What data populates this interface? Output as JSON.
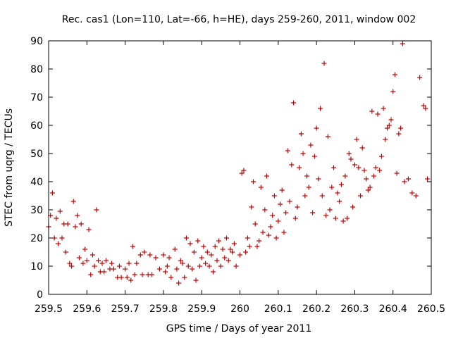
{
  "chart_data": {
    "type": "scatter",
    "title": "Rec. cas1 (Lon=110, Lat=-66, h=HE), days 259-260, 2011, window 002",
    "xlabel": "GPS time / Days of year 2011",
    "ylabel": "STEC from uqrg / TECUs",
    "xlim": [
      259.5,
      260.5
    ],
    "ylim": [
      0,
      90
    ],
    "xticks": [
      259.5,
      259.6,
      259.7,
      259.8,
      259.9,
      260.0,
      260.1,
      260.2,
      260.3,
      260.4,
      260.5
    ],
    "xtick_labels": [
      "259.5",
      "259.6",
      "259.7",
      "259.8",
      "259.9",
      "260",
      "260.1",
      "260.2",
      "260.3",
      "260.4",
      "260.5"
    ],
    "yticks": [
      0,
      10,
      20,
      30,
      40,
      50,
      60,
      70,
      80,
      90
    ],
    "ytick_labels": [
      "0",
      "10",
      "20",
      "30",
      "40",
      "50",
      "60",
      "70",
      "80",
      "90"
    ],
    "marker": "+",
    "marker_color": "#cc0000",
    "grid": false,
    "series": [
      {
        "name": "STEC",
        "points": [
          [
            259.5,
            24
          ],
          [
            259.505,
            28
          ],
          [
            259.51,
            36
          ],
          [
            259.515,
            20
          ],
          [
            259.52,
            27
          ],
          [
            259.525,
            18
          ],
          [
            259.53,
            29.5
          ],
          [
            259.535,
            20
          ],
          [
            259.54,
            25
          ],
          [
            259.545,
            15
          ],
          [
            259.55,
            25
          ],
          [
            259.555,
            11
          ],
          [
            259.56,
            10
          ],
          [
            259.565,
            33
          ],
          [
            259.57,
            24
          ],
          [
            259.575,
            28
          ],
          [
            259.58,
            13
          ],
          [
            259.585,
            25
          ],
          [
            259.59,
            11
          ],
          [
            259.595,
            16
          ],
          [
            259.6,
            12
          ],
          [
            259.605,
            23
          ],
          [
            259.61,
            7
          ],
          [
            259.615,
            14
          ],
          [
            259.62,
            10
          ],
          [
            259.625,
            30
          ],
          [
            259.63,
            12
          ],
          [
            259.635,
            8
          ],
          [
            259.64,
            11
          ],
          [
            259.645,
            8
          ],
          [
            259.65,
            12
          ],
          [
            259.66,
            9
          ],
          [
            259.665,
            11
          ],
          [
            259.67,
            9
          ],
          [
            259.68,
            6
          ],
          [
            259.685,
            10
          ],
          [
            259.69,
            6
          ],
          [
            259.7,
            9
          ],
          [
            259.705,
            6
          ],
          [
            259.71,
            11
          ],
          [
            259.715,
            5
          ],
          [
            259.72,
            17
          ],
          [
            259.725,
            7
          ],
          [
            259.73,
            11
          ],
          [
            259.74,
            14
          ],
          [
            259.745,
            7
          ],
          [
            259.75,
            15
          ],
          [
            259.76,
            7
          ],
          [
            259.765,
            14
          ],
          [
            259.77,
            7
          ],
          [
            259.78,
            13
          ],
          [
            259.79,
            9
          ],
          [
            259.8,
            14
          ],
          [
            259.805,
            8
          ],
          [
            259.81,
            10
          ],
          [
            259.815,
            13
          ],
          [
            259.82,
            6
          ],
          [
            259.83,
            16
          ],
          [
            259.835,
            9
          ],
          [
            259.84,
            4
          ],
          [
            259.845,
            12
          ],
          [
            259.85,
            11
          ],
          [
            259.855,
            6
          ],
          [
            259.86,
            20
          ],
          [
            259.865,
            10
          ],
          [
            259.87,
            18
          ],
          [
            259.875,
            9
          ],
          [
            259.88,
            15
          ],
          [
            259.885,
            5
          ],
          [
            259.89,
            19
          ],
          [
            259.895,
            10
          ],
          [
            259.9,
            13
          ],
          [
            259.905,
            17
          ],
          [
            259.91,
            11
          ],
          [
            259.915,
            15
          ],
          [
            259.92,
            10
          ],
          [
            259.925,
            14
          ],
          [
            259.93,
            8
          ],
          [
            259.935,
            17
          ],
          [
            259.94,
            12
          ],
          [
            259.945,
            19
          ],
          [
            259.95,
            10
          ],
          [
            259.955,
            16
          ],
          [
            259.96,
            13
          ],
          [
            259.965,
            20
          ],
          [
            259.97,
            12
          ],
          [
            259.975,
            16
          ],
          [
            259.98,
            15
          ],
          [
            259.985,
            18
          ],
          [
            259.99,
            10
          ],
          [
            260.0,
            14
          ],
          [
            260.005,
            43
          ],
          [
            260.01,
            44
          ],
          [
            260.015,
            15
          ],
          [
            260.02,
            20
          ],
          [
            260.025,
            17
          ],
          [
            260.03,
            31
          ],
          [
            260.035,
            40
          ],
          [
            260.04,
            25
          ],
          [
            260.045,
            17
          ],
          [
            260.05,
            19
          ],
          [
            260.055,
            38
          ],
          [
            260.06,
            22
          ],
          [
            260.065,
            30
          ],
          [
            260.07,
            42
          ],
          [
            260.075,
            21
          ],
          [
            260.08,
            24
          ],
          [
            260.085,
            28
          ],
          [
            260.09,
            35
          ],
          [
            260.095,
            20
          ],
          [
            260.1,
            26
          ],
          [
            260.105,
            32
          ],
          [
            260.11,
            37
          ],
          [
            260.115,
            22
          ],
          [
            260.12,
            29
          ],
          [
            260.125,
            51
          ],
          [
            260.13,
            33
          ],
          [
            260.135,
            46
          ],
          [
            260.14,
            68
          ],
          [
            260.145,
            27
          ],
          [
            260.15,
            31
          ],
          [
            260.155,
            45
          ],
          [
            260.16,
            57
          ],
          [
            260.165,
            50
          ],
          [
            260.17,
            35
          ],
          [
            260.175,
            42
          ],
          [
            260.18,
            38
          ],
          [
            260.185,
            53
          ],
          [
            260.19,
            29
          ],
          [
            260.195,
            49
          ],
          [
            260.2,
            59
          ],
          [
            260.205,
            41
          ],
          [
            260.21,
            66
          ],
          [
            260.215,
            35
          ],
          [
            260.22,
            82
          ],
          [
            260.225,
            28
          ],
          [
            260.23,
            56
          ],
          [
            260.235,
            30
          ],
          [
            260.24,
            38
          ],
          [
            260.245,
            45
          ],
          [
            260.25,
            27
          ],
          [
            260.255,
            36
          ],
          [
            260.26,
            33
          ],
          [
            260.265,
            39
          ],
          [
            260.27,
            26
          ],
          [
            260.275,
            42
          ],
          [
            260.28,
            27
          ],
          [
            260.285,
            50
          ],
          [
            260.29,
            48
          ],
          [
            260.295,
            31
          ],
          [
            260.3,
            46
          ],
          [
            260.305,
            55
          ],
          [
            260.31,
            45
          ],
          [
            260.315,
            35
          ],
          [
            260.32,
            52
          ],
          [
            260.325,
            44
          ],
          [
            260.33,
            41
          ],
          [
            260.335,
            37
          ],
          [
            260.34,
            38
          ],
          [
            260.345,
            65
          ],
          [
            260.35,
            42
          ],
          [
            260.355,
            45
          ],
          [
            260.36,
            64
          ],
          [
            260.365,
            44
          ],
          [
            260.37,
            49
          ],
          [
            260.375,
            66
          ],
          [
            260.38,
            55
          ],
          [
            260.385,
            59
          ],
          [
            260.39,
            60
          ],
          [
            260.395,
            62
          ],
          [
            260.4,
            72
          ],
          [
            260.405,
            78
          ],
          [
            260.41,
            43
          ],
          [
            260.415,
            57
          ],
          [
            260.42,
            59
          ],
          [
            260.425,
            89
          ],
          [
            260.43,
            40
          ],
          [
            260.44,
            41
          ],
          [
            260.45,
            36
          ],
          [
            260.46,
            35
          ],
          [
            260.47,
            77
          ],
          [
            260.48,
            67
          ],
          [
            260.485,
            66
          ],
          [
            260.49,
            41
          ]
        ]
      }
    ]
  }
}
